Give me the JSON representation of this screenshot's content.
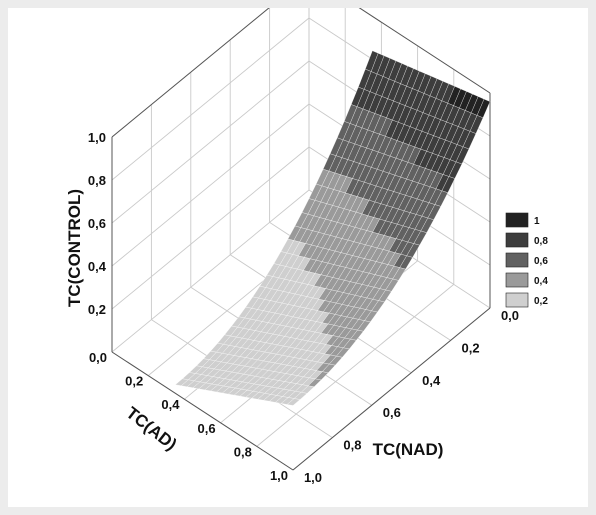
{
  "chart_data": {
    "type": "surface3d",
    "title": "",
    "xlabel": "TC(NAD)",
    "ylabel": "TC(AD)",
    "zlabel": "TC(CONTROL)",
    "x_ticks": [
      "0,0",
      "0,2",
      "0,4",
      "0,6",
      "0,8",
      "1,0"
    ],
    "y_ticks": [
      "0,0",
      "0,2",
      "0,4",
      "0,6",
      "0,8",
      "1,0"
    ],
    "z_ticks": [
      "0,2",
      "0,4",
      "0,6",
      "0,8",
      "1,0"
    ],
    "xlim": [
      0,
      1
    ],
    "ylim": [
      0,
      1
    ],
    "zlim": [
      0,
      1
    ],
    "legend": {
      "placement": "right",
      "entries": [
        {
          "label": "1",
          "color": "#222222"
        },
        {
          "label": "0,8",
          "color": "#3d3d3d"
        },
        {
          "label": "0,6",
          "color": "#616161"
        },
        {
          "label": "0,4",
          "color": "#9a9a9a"
        },
        {
          "label": "0,2",
          "color": "#cfcfcf"
        }
      ]
    },
    "surface": {
      "x_range": [
        0,
        1
      ],
      "y_range": [
        0.35,
        1
      ],
      "z_at_corners": {
        "x0_y1": 0.96,
        "x0_y0.35": 0.84,
        "x1_y1": 0.3,
        "x1_y0.35": 0.04
      },
      "shape": "concave"
    },
    "grid": true
  }
}
